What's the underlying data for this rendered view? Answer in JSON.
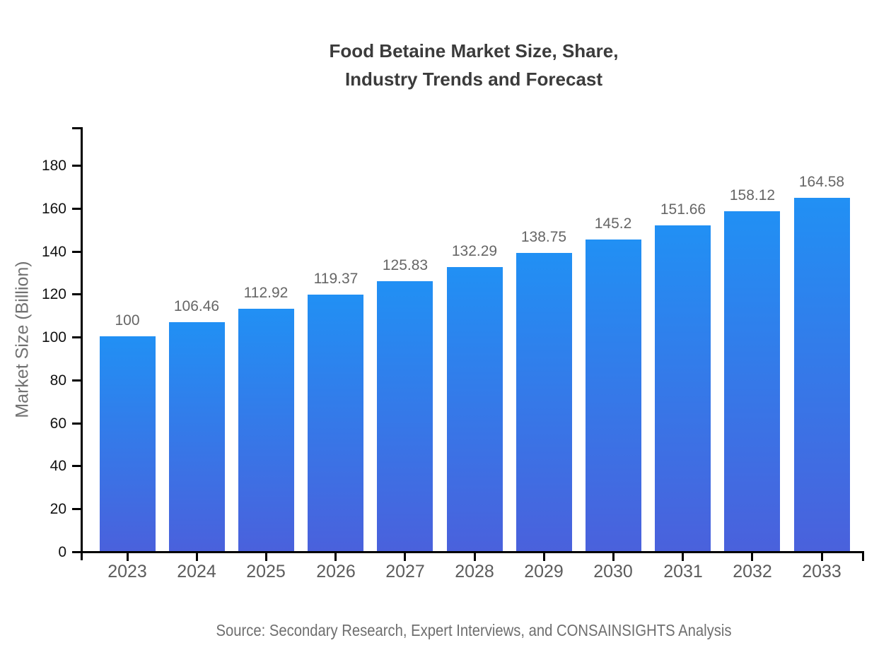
{
  "chart_data": {
    "type": "bar",
    "title_line1": "Food Betaine Market Size, Share,",
    "title_line2": "Industry Trends and Forecast",
    "ylabel": "Market Size (Billion)",
    "xlabel": "",
    "categories": [
      "2023",
      "2024",
      "2025",
      "2026",
      "2027",
      "2028",
      "2029",
      "2030",
      "2031",
      "2032",
      "2033"
    ],
    "values": [
      100,
      106.46,
      112.92,
      119.37,
      125.83,
      132.29,
      138.75,
      145.2,
      151.66,
      158.12,
      164.58
    ],
    "yticks": [
      0,
      20,
      40,
      60,
      80,
      100,
      120,
      140,
      160,
      180
    ],
    "ylim": [
      0,
      180
    ],
    "grid": false,
    "legend": false,
    "source": "Source: Secondary Research, Expert Interviews, and CONSAINSIGHTS Analysis",
    "colors": {
      "bar_top": "#2190F4",
      "bar_bottom": "#4A61DC",
      "axis": "#000000",
      "title": "#3b3b3b",
      "y_tick_label": "#111111",
      "category_label": "#5c5c5c",
      "value_label": "#666666",
      "axis_title": "#727272",
      "source": "#6e6e6e",
      "background": "#ffffff"
    }
  }
}
